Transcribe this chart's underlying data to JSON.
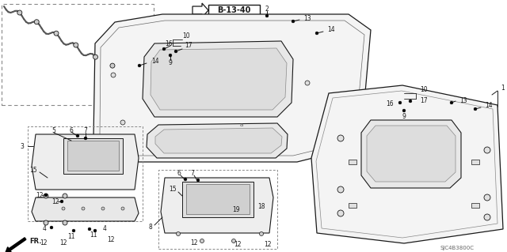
{
  "bg_color": "#ffffff",
  "line_color": "#1a1a1a",
  "text_color": "#1a1a1a",
  "figsize": [
    6.4,
    3.19
  ],
  "dpi": 100,
  "part_code": "SJC4B3800C",
  "diagram_ref": "B-13-40"
}
